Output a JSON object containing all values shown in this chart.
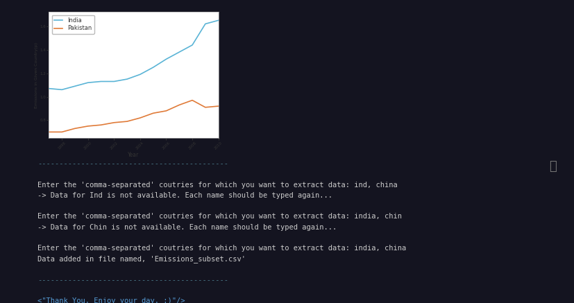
{
  "background_color": "#141420",
  "plot_bg_color": "#ffffff",
  "india_color": "#5ab4d6",
  "pakistan_color": "#e07b39",
  "years": [
    1997,
    1998,
    1999,
    2000,
    2001,
    2002,
    2003,
    2004,
    2005,
    2006,
    2007,
    2008,
    2009,
    2010
  ],
  "india_values": [
    1.07,
    1.06,
    1.09,
    1.12,
    1.13,
    1.13,
    1.15,
    1.19,
    1.25,
    1.32,
    1.38,
    1.44,
    1.62,
    1.65
  ],
  "pakistan_values": [
    0.7,
    0.7,
    0.73,
    0.75,
    0.76,
    0.78,
    0.79,
    0.82,
    0.86,
    0.88,
    0.93,
    0.97,
    0.91,
    0.92
  ],
  "xlabel": "Year",
  "ylabel": "Emissions in Given Country(p)",
  "separator": "--------------------------------------------",
  "sep_color": "#4a7a8a",
  "normal_color": "#cccccc",
  "link_color": "#569cd6",
  "terminal_border_color": "#2a2a3e",
  "yticks": [
    0.8,
    1.0,
    1.2,
    1.4,
    1.6
  ],
  "ylim": [
    0.65,
    1.72
  ]
}
